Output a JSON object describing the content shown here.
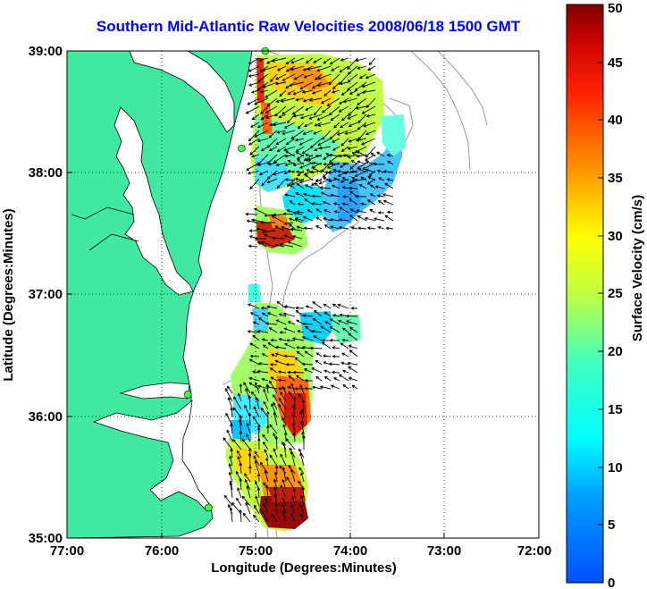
{
  "title": "Southern Mid-Atlantic Raw Velocities 2008/06/18 1500 GMT",
  "xlabel": "Longitude (Degrees:Minutes)",
  "ylabel": "Latitude (Degrees:Minutes)",
  "x_ticks": [
    "77:00",
    "76:00",
    "75:00",
    "74:00",
    "73:00",
    "72:00"
  ],
  "y_ticks": [
    "39:00",
    "38:00",
    "37:00",
    "36:00",
    "35:00"
  ],
  "colorbar": {
    "label": "Surface Velocity (cm/s)",
    "ticks": [
      "0",
      "5",
      "10",
      "15",
      "20",
      "25",
      "30",
      "35",
      "40",
      "45",
      "50"
    ],
    "min": 0,
    "max": 50
  },
  "colors": {
    "land": "#40e8a0",
    "title": "#0000ff",
    "bathymetry": "#999999"
  },
  "extent": {
    "lon": [
      -77,
      -72
    ],
    "lat": [
      35,
      39
    ]
  },
  "stations": [
    {
      "lon": -74.9,
      "lat": 39.0
    },
    {
      "lon": -75.15,
      "lat": 38.2
    },
    {
      "lon": -75.72,
      "lat": 36.18
    },
    {
      "lon": -75.5,
      "lat": 35.25
    }
  ]
}
